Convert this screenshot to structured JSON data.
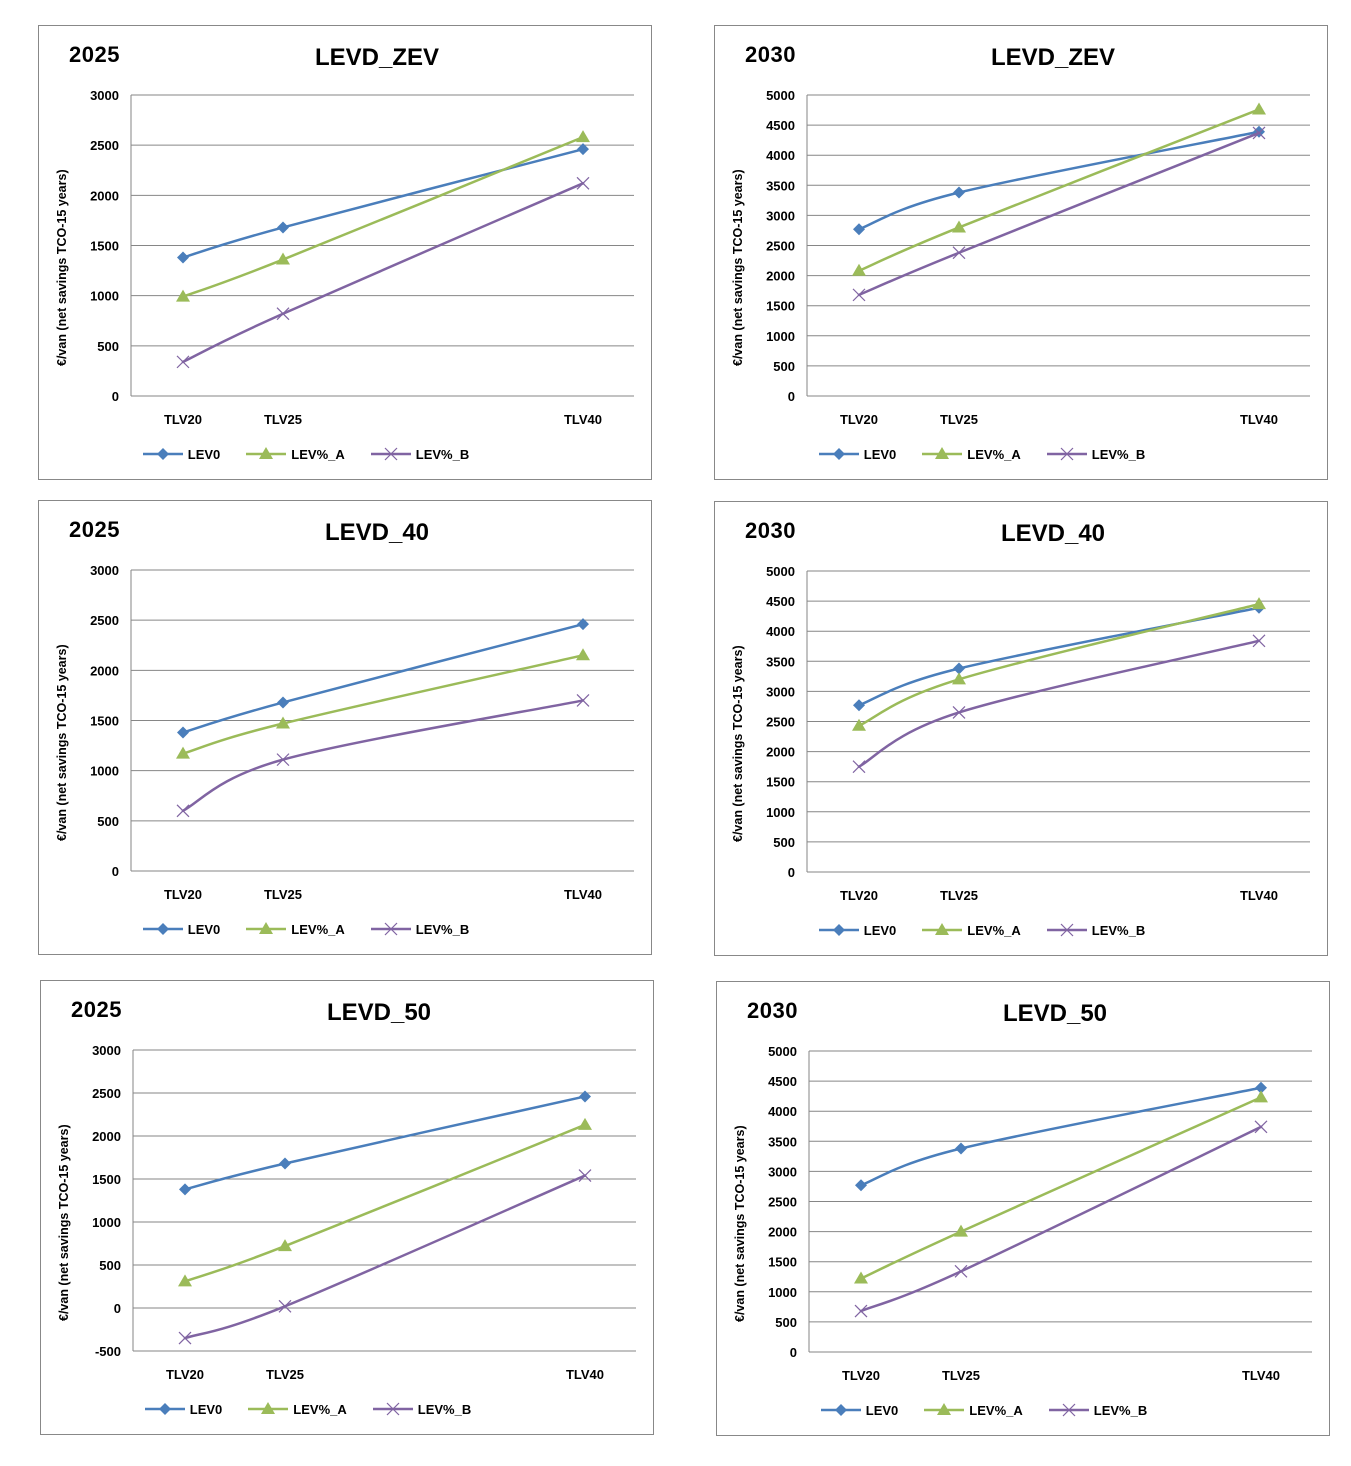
{
  "common": {
    "ylabel": "€/van (net savings TCO-15 years)",
    "x_categories": [
      "TLV20",
      "TLV25",
      "TLV40"
    ],
    "series_names": [
      "LEV0",
      "LEV%_A",
      "LEV%_B"
    ],
    "series_colors": [
      "#4a7ebb",
      "#9bbb59",
      "#8064a2"
    ],
    "series_markers": [
      "diamond",
      "triangle",
      "x"
    ]
  },
  "chart_data": [
    {
      "type": "line",
      "year": "2025",
      "title": "LEVD_ZEV",
      "xlabel": "",
      "ylabel": "€/van (net savings TCO-15 years)",
      "x": [
        20,
        25,
        40
      ],
      "categories": [
        "TLV20",
        "TLV25",
        "TLV40"
      ],
      "ylim": [
        0,
        3000
      ],
      "yticks": [
        0,
        500,
        1000,
        1500,
        2000,
        2500,
        3000
      ],
      "grid": true,
      "legend": "bottom",
      "series": [
        {
          "name": "LEV0",
          "values": [
            1380,
            1680,
            2460
          ]
        },
        {
          "name": "LEV%_A",
          "values": [
            990,
            1360,
            2580
          ]
        },
        {
          "name": "LEV%_B",
          "values": [
            340,
            820,
            2120
          ]
        }
      ]
    },
    {
      "type": "line",
      "year": "2030",
      "title": "LEVD_ZEV",
      "xlabel": "",
      "ylabel": "€/van (net savings TCO-15 years)",
      "x": [
        20,
        25,
        40
      ],
      "categories": [
        "TLV20",
        "TLV25",
        "TLV40"
      ],
      "ylim": [
        0,
        5000
      ],
      "yticks": [
        0,
        500,
        1000,
        1500,
        2000,
        2500,
        3000,
        3500,
        4000,
        4500,
        5000
      ],
      "grid": true,
      "legend": "bottom",
      "series": [
        {
          "name": "LEV0",
          "values": [
            2770,
            3380,
            4390
          ]
        },
        {
          "name": "LEV%_A",
          "values": [
            2080,
            2800,
            4760
          ]
        },
        {
          "name": "LEV%_B",
          "values": [
            1680,
            2380,
            4370
          ]
        }
      ]
    },
    {
      "type": "line",
      "year": "2025",
      "title": "LEVD_40",
      "xlabel": "",
      "ylabel": "€/van (net savings TCO-15 years)",
      "x": [
        20,
        25,
        40
      ],
      "categories": [
        "TLV20",
        "TLV25",
        "TLV40"
      ],
      "ylim": [
        0,
        3000
      ],
      "yticks": [
        0,
        500,
        1000,
        1500,
        2000,
        2500,
        3000
      ],
      "grid": true,
      "legend": "bottom",
      "series": [
        {
          "name": "LEV0",
          "values": [
            1380,
            1680,
            2460
          ]
        },
        {
          "name": "LEV%_A",
          "values": [
            1170,
            1470,
            2150
          ]
        },
        {
          "name": "LEV%_B",
          "values": [
            600,
            1110,
            1700
          ]
        }
      ]
    },
    {
      "type": "line",
      "year": "2030",
      "title": "LEVD_40",
      "xlabel": "",
      "ylabel": "€/van (net savings TCO-15 years)",
      "x": [
        20,
        25,
        40
      ],
      "categories": [
        "TLV20",
        "TLV25",
        "TLV40"
      ],
      "ylim": [
        0,
        5000
      ],
      "yticks": [
        0,
        500,
        1000,
        1500,
        2000,
        2500,
        3000,
        3500,
        4000,
        4500,
        5000
      ],
      "grid": true,
      "legend": "bottom",
      "series": [
        {
          "name": "LEV0",
          "values": [
            2770,
            3380,
            4390
          ]
        },
        {
          "name": "LEV%_A",
          "values": [
            2430,
            3200,
            4450
          ]
        },
        {
          "name": "LEV%_B",
          "values": [
            1750,
            2650,
            3840
          ]
        }
      ]
    },
    {
      "type": "line",
      "year": "2025",
      "title": "LEVD_50",
      "xlabel": "",
      "ylabel": "€/van (net savings TCO-15 years)",
      "x": [
        20,
        25,
        40
      ],
      "categories": [
        "TLV20",
        "TLV25",
        "TLV40"
      ],
      "ylim": [
        -500,
        3000
      ],
      "yticks": [
        -500,
        0,
        500,
        1000,
        1500,
        2000,
        2500,
        3000
      ],
      "grid": true,
      "legend": "bottom",
      "series": [
        {
          "name": "LEV0",
          "values": [
            1380,
            1680,
            2460
          ]
        },
        {
          "name": "LEV%_A",
          "values": [
            310,
            720,
            2130
          ]
        },
        {
          "name": "LEV%_B",
          "values": [
            -350,
            20,
            1540
          ]
        }
      ]
    },
    {
      "type": "line",
      "year": "2030",
      "title": "LEVD_50",
      "xlabel": "",
      "ylabel": "€/van (net savings TCO-15 years)",
      "x": [
        20,
        25,
        40
      ],
      "categories": [
        "TLV20",
        "TLV25",
        "TLV40"
      ],
      "ylim": [
        0,
        5000
      ],
      "yticks": [
        0,
        500,
        1000,
        1500,
        2000,
        2500,
        3000,
        3500,
        4000,
        4500,
        5000
      ],
      "grid": true,
      "legend": "bottom",
      "series": [
        {
          "name": "LEV0",
          "values": [
            2770,
            3380,
            4390
          ]
        },
        {
          "name": "LEV%_A",
          "values": [
            1220,
            2000,
            4230
          ]
        },
        {
          "name": "LEV%_B",
          "values": [
            680,
            1340,
            3740
          ]
        }
      ]
    }
  ]
}
